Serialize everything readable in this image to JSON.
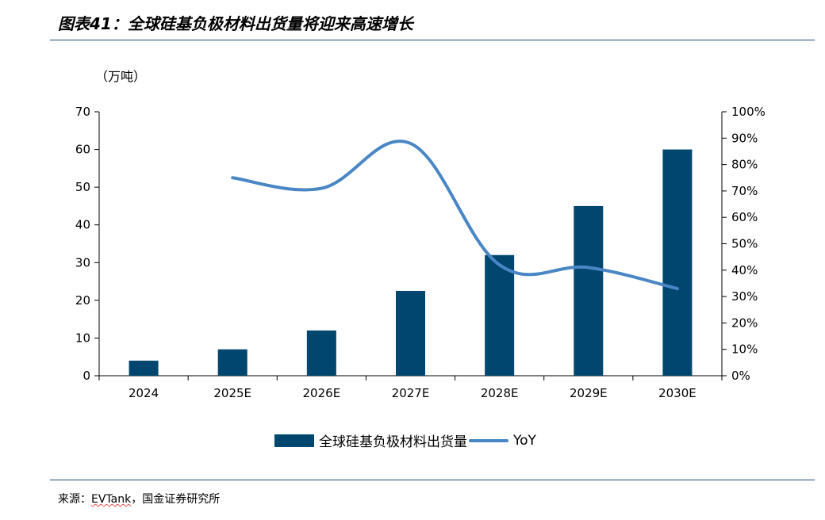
{
  "header": {
    "title": "图表41：全球硅基负极材料出货量将迎来高速增长"
  },
  "footer": {
    "source_prefix": "来源：",
    "source_name": "EVTank",
    "source_suffix": "，国金证券研究所"
  },
  "colors": {
    "bar": "#00466e",
    "line": "#4a86c5",
    "axis": "#000000",
    "rule": "#1f4e79"
  },
  "chart_data": {
    "type": "bar",
    "title": "全球硅基负极材料出货量将迎来高速增长",
    "ylabel": "（万吨）",
    "categories": [
      "2024",
      "2025E",
      "2026E",
      "2027E",
      "2028E",
      "2029E",
      "2030E"
    ],
    "ylim": [
      0,
      70
    ],
    "yticks": [
      0,
      10,
      20,
      30,
      40,
      50,
      60,
      70
    ],
    "y2lim": [
      0,
      100
    ],
    "y2ticks": [
      "0%",
      "10%",
      "20%",
      "30%",
      "40%",
      "50%",
      "60%",
      "70%",
      "80%",
      "90%",
      "100%"
    ],
    "series": [
      {
        "name": "全球硅基负极材料出货量",
        "kind": "bar",
        "axis": "left",
        "values": [
          4,
          7,
          12,
          22.5,
          32,
          45,
          60
        ]
      },
      {
        "name": "YoY",
        "kind": "line",
        "axis": "right",
        "values": [
          null,
          75,
          71,
          88,
          42,
          41,
          33
        ]
      }
    ],
    "legend": [
      "全球硅基负极材料出货量",
      "YoY"
    ],
    "legend_position": "bottom-center",
    "grid": false
  }
}
